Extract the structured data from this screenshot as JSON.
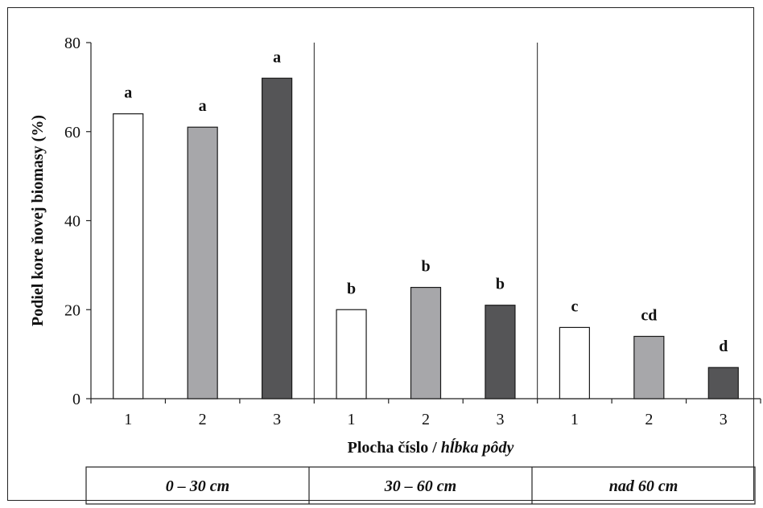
{
  "chart_data": {
    "type": "bar",
    "xlabel_prefix": "Plocha číslo / ",
    "xlabel_italic": "hĺbka pôdy",
    "ylabel": "Podiel kore ňovej biomasy (%)",
    "ylim": [
      0,
      80
    ],
    "yticks": [
      0,
      20,
      40,
      60,
      80
    ],
    "grid": false,
    "legend": "none",
    "groups": [
      {
        "label": "0 – 30 cm",
        "categories": [
          "1",
          "2",
          "3"
        ],
        "values": [
          64,
          61,
          72
        ],
        "letters": [
          "a",
          "a",
          "a"
        ]
      },
      {
        "label": "30 – 60 cm",
        "categories": [
          "1",
          "2",
          "3"
        ],
        "values": [
          20,
          25,
          21
        ],
        "letters": [
          "b",
          "b",
          "b"
        ]
      },
      {
        "label": "nad 60 cm",
        "categories": [
          "1",
          "2",
          "3"
        ],
        "values": [
          16,
          14,
          7
        ],
        "letters": [
          "c",
          "cd",
          "d"
        ]
      }
    ],
    "bar_colors": [
      "#ffffff",
      "#a7a7aa",
      "#555557"
    ],
    "bar_stroke": "#1a1a1a"
  }
}
